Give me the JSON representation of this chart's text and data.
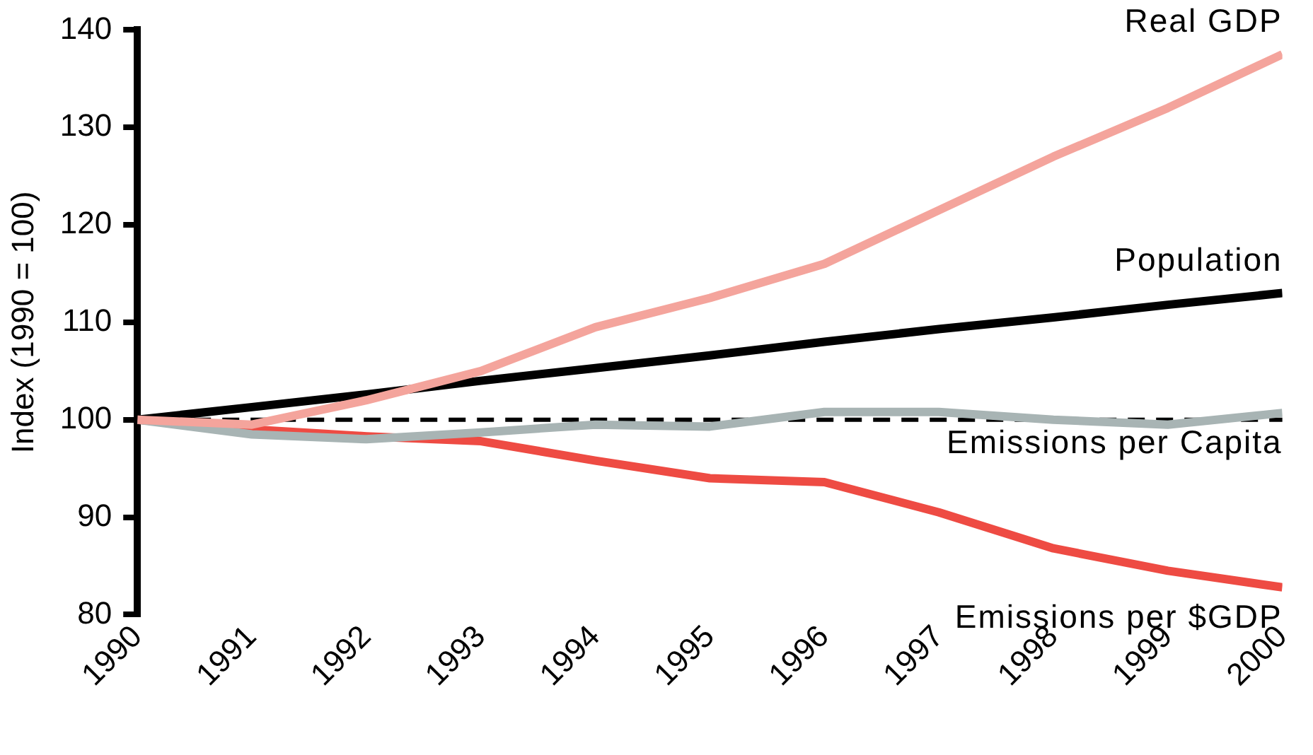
{
  "chart_data": {
    "type": "line",
    "ylabel": "Index (1990 = 100)",
    "x": [
      1990,
      1991,
      1992,
      1993,
      1994,
      1995,
      1996,
      1997,
      1998,
      1999,
      2000
    ],
    "xlim": [
      1990,
      2000
    ],
    "xticks": [
      1990,
      1991,
      1992,
      1993,
      1994,
      1995,
      1996,
      1997,
      1998,
      1999,
      2000
    ],
    "ylim": [
      80,
      140
    ],
    "yticks": [
      80,
      90,
      100,
      110,
      120,
      130,
      140
    ],
    "grid": false,
    "legend": false,
    "marker": "none",
    "line_style": "solid",
    "ref_lines": [
      {
        "axis": "y",
        "value": 100,
        "color": "#000000",
        "line_style": "dashed"
      }
    ],
    "series": [
      {
        "name": "Real GDP",
        "color": "#f4a49c",
        "values": [
          100,
          99.5,
          102,
          105,
          109.5,
          112.5,
          116,
          121.5,
          127,
          132,
          137.5
        ]
      },
      {
        "name": "Population",
        "color": "#000000",
        "values": [
          100,
          101.3,
          102.6,
          104,
          105.3,
          106.6,
          108,
          109.3,
          110.5,
          111.8,
          113
        ]
      },
      {
        "name": "Emissions per Capita",
        "color": "#a8b4b4",
        "values": [
          100,
          98.5,
          98,
          98.7,
          99.5,
          99.3,
          100.8,
          100.8,
          100,
          99.5,
          100.7
        ]
      },
      {
        "name": "Emissions per $GDP",
        "color": "#ee4b43",
        "values": [
          100,
          99,
          98.3,
          97.8,
          95.8,
          94,
          93.6,
          90.5,
          86.8,
          84.5,
          82.8
        ]
      }
    ]
  }
}
